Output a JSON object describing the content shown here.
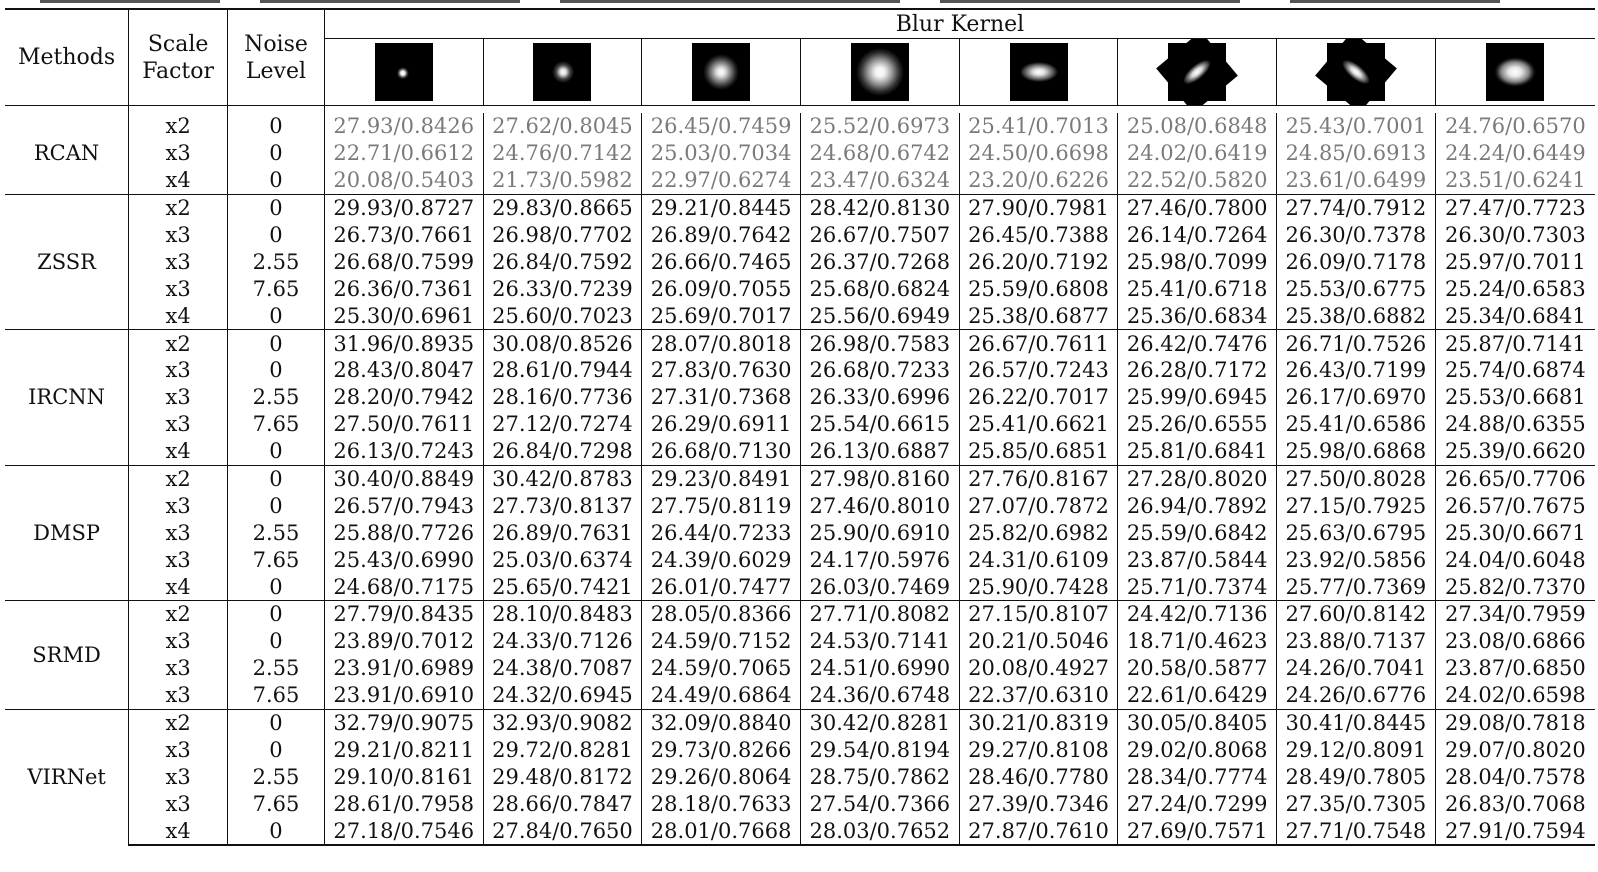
{
  "table": {
    "headers": {
      "methods": "Methods",
      "scale_factor_line1": "Scale",
      "scale_factor_line2": "Factor",
      "noise_level_line1": "Noise",
      "noise_level_line2": "Level",
      "blur_kernel": "Blur Kernel"
    },
    "kernels": [
      {
        "shape": "tiny-isotropic"
      },
      {
        "shape": "small-isotropic"
      },
      {
        "shape": "medium-isotropic"
      },
      {
        "shape": "large-isotropic"
      },
      {
        "shape": "horizontal-anisotropic"
      },
      {
        "shape": "diagonal-up-anisotropic"
      },
      {
        "shape": "diagonal-down-anisotropic"
      },
      {
        "shape": "wide-isotropic"
      }
    ],
    "groups": [
      {
        "method": "RCAN",
        "bold": false,
        "style": "gray",
        "rows": [
          {
            "scale": "x2",
            "noise": "0",
            "values": [
              "27.93/0.8426",
              "27.62/0.8045",
              "26.45/0.7459",
              "25.52/0.6973",
              "25.41/0.7013",
              "25.08/0.6848",
              "25.43/0.7001",
              "24.76/0.6570"
            ]
          },
          {
            "scale": "x3",
            "noise": "0",
            "values": [
              "22.71/0.6612",
              "24.76/0.7142",
              "25.03/0.7034",
              "24.68/0.6742",
              "24.50/0.6698",
              "24.02/0.6419",
              "24.85/0.6913",
              "24.24/0.6449"
            ]
          },
          {
            "scale": "x4",
            "noise": "0",
            "values": [
              "20.08/0.5403",
              "21.73/0.5982",
              "22.97/0.6274",
              "23.47/0.6324",
              "23.20/0.6226",
              "22.52/0.5820",
              "23.61/0.6499",
              "23.51/0.6241"
            ]
          }
        ]
      },
      {
        "method": "ZSSR",
        "bold": false,
        "style": "normal",
        "rows": [
          {
            "scale": "x2",
            "noise": "0",
            "values": [
              "29.93/0.8727",
              "29.83/0.8665",
              "29.21/0.8445",
              "28.42/0.8130",
              "27.90/0.7981",
              "27.46/0.7800",
              "27.74/0.7912",
              "27.47/0.7723"
            ]
          },
          {
            "scale": "x3",
            "noise": "0",
            "values": [
              "26.73/0.7661",
              "26.98/0.7702",
              "26.89/0.7642",
              "26.67/0.7507",
              "26.45/0.7388",
              "26.14/0.7264",
              "26.30/0.7378",
              "26.30/0.7303"
            ]
          },
          {
            "scale": "x3",
            "noise": "2.55",
            "values": [
              "26.68/0.7599",
              "26.84/0.7592",
              "26.66/0.7465",
              "26.37/0.7268",
              "26.20/0.7192",
              "25.98/0.7099",
              "26.09/0.7178",
              "25.97/0.7011"
            ]
          },
          {
            "scale": "x3",
            "noise": "7.65",
            "values": [
              "26.36/0.7361",
              "26.33/0.7239",
              "26.09/0.7055",
              "25.68/0.6824",
              "25.59/0.6808",
              "25.41/0.6718",
              "25.53/0.6775",
              "25.24/0.6583"
            ]
          },
          {
            "scale": "x4",
            "noise": "0",
            "values": [
              "25.30/0.6961",
              "25.60/0.7023",
              "25.69/0.7017",
              "25.56/0.6949",
              "25.38/0.6877",
              "25.36/0.6834",
              "25.38/0.6882",
              "25.34/0.6841"
            ]
          }
        ]
      },
      {
        "method": "IRCNN",
        "bold": false,
        "style": "normal",
        "rows": [
          {
            "scale": "x2",
            "noise": "0",
            "values": [
              "31.96/0.8935",
              "30.08/0.8526",
              "28.07/0.8018",
              "26.98/0.7583",
              "26.67/0.7611",
              "26.42/0.7476",
              "26.71/0.7526",
              "25.87/0.7141"
            ]
          },
          {
            "scale": "x3",
            "noise": "0",
            "values": [
              "28.43/0.8047",
              "28.61/0.7944",
              "27.83/0.7630",
              "26.68/0.7233",
              "26.57/0.7243",
              "26.28/0.7172",
              "26.43/0.7199",
              "25.74/0.6874"
            ]
          },
          {
            "scale": "x3",
            "noise": "2.55",
            "values": [
              "28.20/0.7942",
              "28.16/0.7736",
              "27.31/0.7368",
              "26.33/0.6996",
              "26.22/0.7017",
              "25.99/0.6945",
              "26.17/0.6970",
              "25.53/0.6681"
            ]
          },
          {
            "scale": "x3",
            "noise": "7.65",
            "values": [
              "27.50/0.7611",
              "27.12/0.7274",
              "26.29/0.6911",
              "25.54/0.6615",
              "25.41/0.6621",
              "25.26/0.6555",
              "25.41/0.6586",
              "24.88/0.6355"
            ]
          },
          {
            "scale": "x4",
            "noise": "0",
            "values": [
              "26.13/0.7243",
              "26.84/0.7298",
              "26.68/0.7130",
              "26.13/0.6887",
              "25.85/0.6851",
              "25.81/0.6841",
              "25.98/0.6868",
              "25.39/0.6620"
            ]
          }
        ]
      },
      {
        "method": "DMSP",
        "bold": true,
        "style": "normal",
        "rows": [
          {
            "scale": "x2",
            "noise": "0",
            "values": [
              "30.40/0.8849",
              "30.42/0.8783",
              "29.23/0.8491",
              "27.98/0.8160",
              "27.76/0.8167",
              "27.28/0.8020",
              "27.50/0.8028",
              "26.65/0.7706"
            ]
          },
          {
            "scale": "x3",
            "noise": "0",
            "values": [
              "26.57/0.7943",
              "27.73/0.8137",
              "27.75/0.8119",
              "27.46/0.8010",
              "27.07/0.7872",
              "26.94/0.7892",
              "27.15/0.7925",
              "26.57/0.7675"
            ]
          },
          {
            "scale": "x3",
            "noise": "2.55",
            "values": [
              "25.88/0.7726",
              "26.89/0.7631",
              "26.44/0.7233",
              "25.90/0.6910",
              "25.82/0.6982",
              "25.59/0.6842",
              "25.63/0.6795",
              "25.30/0.6671"
            ]
          },
          {
            "scale": "x3",
            "noise": "7.65",
            "values": [
              "25.43/0.6990",
              "25.03/0.6374",
              "24.39/0.6029",
              "24.17/0.5976",
              "24.31/0.6109",
              "23.87/0.5844",
              "23.92/0.5856",
              "24.04/0.6048"
            ]
          },
          {
            "scale": "x4",
            "noise": "0",
            "values": [
              "24.68/0.7175",
              "25.65/0.7421",
              "26.01/0.7477",
              "26.03/0.7469",
              "25.90/0.7428",
              "25.71/0.7374",
              "25.77/0.7369",
              "25.82/0.7370"
            ]
          }
        ]
      },
      {
        "method": "SRMD",
        "bold": false,
        "style": "normal",
        "rows": [
          {
            "scale": "x2",
            "noise": "0",
            "values": [
              "27.79/0.8435",
              "28.10/0.8483",
              "28.05/0.8366",
              "27.71/0.8082",
              "27.15/0.8107",
              "24.42/0.7136",
              "27.60/0.8142",
              "27.34/0.7959"
            ]
          },
          {
            "scale": "x3",
            "noise": "0",
            "values": [
              "23.89/0.7012",
              "24.33/0.7126",
              "24.59/0.7152",
              "24.53/0.7141",
              "20.21/0.5046",
              "18.71/0.4623",
              "23.88/0.7137",
              "23.08/0.6866"
            ]
          },
          {
            "scale": "x3",
            "noise": "2.55",
            "values": [
              "23.91/0.6989",
              "24.38/0.7087",
              "24.59/0.7065",
              "24.51/0.6990",
              "20.08/0.4927",
              "20.58/0.5877",
              "24.26/0.7041",
              "23.87/0.6850"
            ]
          },
          {
            "scale": "x3",
            "noise": "7.65",
            "values": [
              "23.91/0.6910",
              "24.32/0.6945",
              "24.49/0.6864",
              "24.36/0.6748",
              "22.37/0.6310",
              "22.61/0.6429",
              "24.26/0.6776",
              "24.02/0.6598"
            ]
          }
        ]
      },
      {
        "method": "VIRNet",
        "bold": false,
        "style": "bold-values",
        "rows": [
          {
            "scale": "x2",
            "noise": "0",
            "values": [
              "32.79/0.9075",
              "32.93/0.9082",
              "32.09/0.8840",
              "30.42/0.8281",
              "30.21/0.8319",
              "30.05/0.8405",
              "30.41/0.8445",
              "29.08/0.7818"
            ]
          },
          {
            "scale": "x3",
            "noise": "0",
            "values": [
              "29.21/0.8211",
              "29.72/0.8281",
              "29.73/0.8266",
              "29.54/0.8194",
              "29.27/0.8108",
              "29.02/0.8068",
              "29.12/0.8091",
              "29.07/0.8020"
            ]
          },
          {
            "scale": "x3",
            "noise": "2.55",
            "values": [
              "29.10/0.8161",
              "29.48/0.8172",
              "29.26/0.8064",
              "28.75/0.7862",
              "28.46/0.7780",
              "28.34/0.7774",
              "28.49/0.7805",
              "28.04/0.7578"
            ]
          },
          {
            "scale": "x3",
            "noise": "7.65",
            "values": [
              "28.61/0.7958",
              "28.66/0.7847",
              "28.18/0.7633",
              "27.54/0.7366",
              "27.39/0.7346",
              "27.24/0.7299",
              "27.35/0.7305",
              "26.83/0.7068"
            ]
          },
          {
            "scale": "x4",
            "noise": "0",
            "values": [
              "27.18/0.7546",
              "27.84/0.7650",
              "28.01/0.7668",
              "28.03/0.7652",
              "27.87/0.7610",
              "27.69/0.7571",
              "27.71/0.7548",
              "27.91/0.7594"
            ]
          }
        ]
      }
    ]
  }
}
